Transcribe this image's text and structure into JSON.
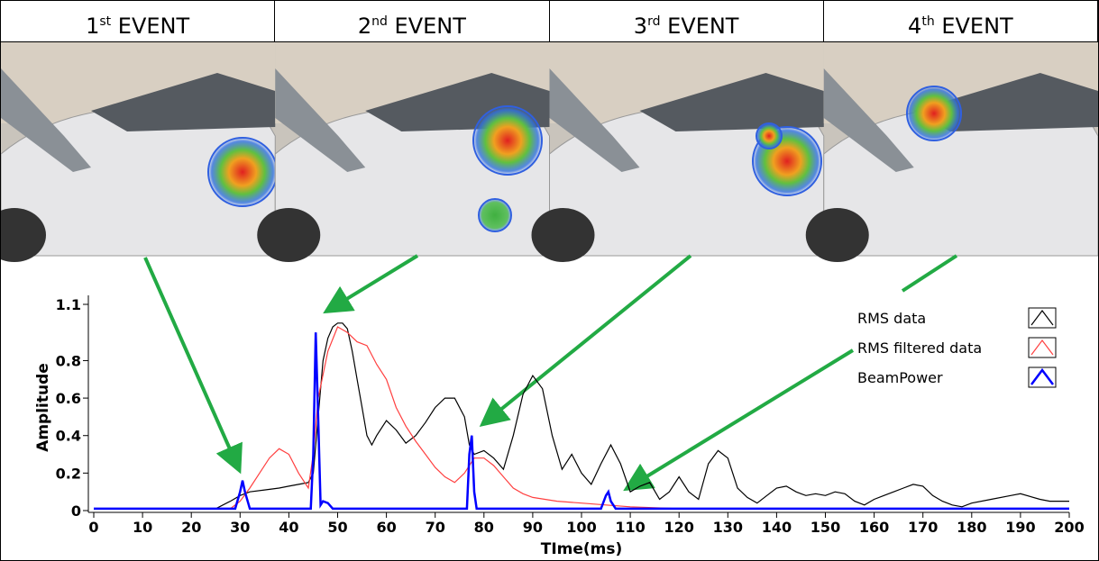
{
  "events": [
    {
      "num": "1",
      "sup": "st",
      "label": "EVENT"
    },
    {
      "num": "2",
      "sup": "nd",
      "label": "EVENT"
    },
    {
      "num": "3",
      "sup": "rd",
      "label": "EVENT"
    },
    {
      "num": "4",
      "sup": "th",
      "label": "EVENT"
    }
  ],
  "chart_data": {
    "type": "line",
    "x_label": "TIme(ms)",
    "y_label": "Amplitude",
    "xlim": [
      0,
      200
    ],
    "xticks": [
      0,
      10,
      20,
      30,
      40,
      50,
      60,
      70,
      80,
      90,
      100,
      110,
      120,
      130,
      140,
      150,
      160,
      170,
      180,
      190,
      200
    ],
    "ylim": [
      0,
      1.1
    ],
    "yticks": [
      0,
      0.2,
      0.4,
      0.6,
      0.8,
      1.1
    ],
    "legend": "upper right",
    "series": [
      {
        "name": "RMS data",
        "color": "#000000",
        "x": [
          0,
          25,
          28,
          30,
          32,
          35,
          38,
          40,
          42,
          44,
          45,
          46,
          47,
          48,
          49,
          50,
          51,
          52,
          53,
          54,
          55,
          56,
          57,
          58,
          60,
          62,
          64,
          66,
          68,
          70,
          72,
          74,
          76,
          77,
          78,
          80,
          82,
          84,
          86,
          88,
          90,
          92,
          94,
          96,
          98,
          100,
          102,
          104,
          106,
          108,
          110,
          112,
          114,
          116,
          118,
          120,
          122,
          124,
          126,
          128,
          130,
          132,
          134,
          136,
          138,
          140,
          142,
          144,
          146,
          148,
          150,
          152,
          154,
          156,
          158,
          160,
          162,
          164,
          166,
          168,
          170,
          172,
          174,
          176,
          178,
          180,
          184,
          188,
          190,
          194,
          196,
          200
        ],
        "values": [
          0.01,
          0.01,
          0.05,
          0.08,
          0.1,
          0.11,
          0.12,
          0.13,
          0.14,
          0.15,
          0.2,
          0.5,
          0.8,
          0.92,
          0.98,
          1.0,
          1.0,
          0.97,
          0.85,
          0.7,
          0.55,
          0.4,
          0.35,
          0.4,
          0.48,
          0.43,
          0.36,
          0.4,
          0.47,
          0.55,
          0.6,
          0.6,
          0.5,
          0.35,
          0.3,
          0.32,
          0.28,
          0.22,
          0.4,
          0.62,
          0.72,
          0.65,
          0.4,
          0.22,
          0.3,
          0.2,
          0.14,
          0.25,
          0.35,
          0.25,
          0.1,
          0.13,
          0.15,
          0.06,
          0.1,
          0.18,
          0.1,
          0.06,
          0.25,
          0.32,
          0.28,
          0.12,
          0.07,
          0.04,
          0.08,
          0.12,
          0.13,
          0.1,
          0.08,
          0.09,
          0.08,
          0.1,
          0.09,
          0.05,
          0.03,
          0.06,
          0.08,
          0.1,
          0.12,
          0.14,
          0.13,
          0.08,
          0.05,
          0.03,
          0.02,
          0.04,
          0.06,
          0.08,
          0.09,
          0.06,
          0.05,
          0.05
        ]
      },
      {
        "name": "RMS filtered data",
        "color": "#ff4040",
        "x": [
          0,
          28,
          30,
          32,
          34,
          36,
          38,
          40,
          42,
          44,
          45,
          46,
          48,
          50,
          52,
          54,
          56,
          58,
          60,
          62,
          64,
          66,
          68,
          70,
          72,
          74,
          76,
          78,
          80,
          82,
          84,
          86,
          88,
          90,
          95,
          100,
          105,
          110,
          120,
          200
        ],
        "values": [
          0.01,
          0.01,
          0.05,
          0.12,
          0.2,
          0.28,
          0.33,
          0.3,
          0.2,
          0.12,
          0.3,
          0.6,
          0.85,
          0.98,
          0.95,
          0.9,
          0.88,
          0.78,
          0.7,
          0.55,
          0.45,
          0.37,
          0.3,
          0.23,
          0.18,
          0.15,
          0.2,
          0.28,
          0.28,
          0.24,
          0.18,
          0.12,
          0.09,
          0.07,
          0.05,
          0.04,
          0.03,
          0.02,
          0.01,
          0.01
        ]
      },
      {
        "name": "BeamPower",
        "color": "#0000ff",
        "x": [
          0,
          29,
          30,
          30.5,
          31,
          32,
          44.5,
          45,
          45.5,
          46,
          46.5,
          47,
          48,
          49,
          76.5,
          77,
          77.5,
          78,
          78.5,
          104,
          105,
          105.5,
          106,
          107,
          200
        ],
        "values": [
          0.01,
          0.01,
          0.1,
          0.16,
          0.1,
          0.01,
          0.01,
          0.3,
          0.95,
          0.5,
          0.03,
          0.05,
          0.04,
          0.01,
          0.01,
          0.3,
          0.4,
          0.1,
          0.01,
          0.01,
          0.08,
          0.1,
          0.05,
          0.01,
          0.01
        ]
      }
    ]
  }
}
